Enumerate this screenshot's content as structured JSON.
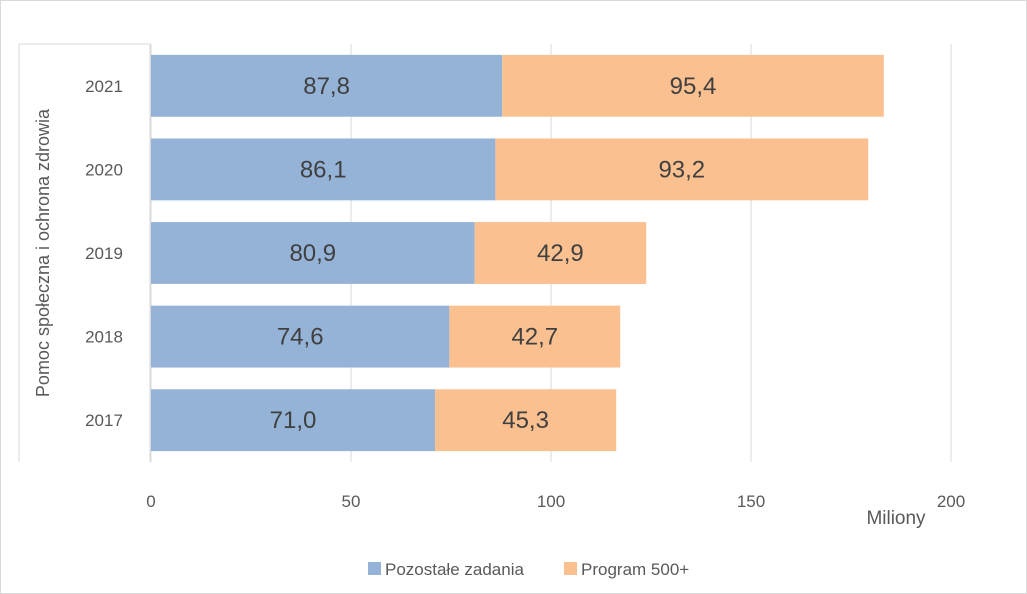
{
  "chart_data": {
    "type": "bar",
    "orientation": "horizontal",
    "stacked": true,
    "categories": [
      "2017",
      "2018",
      "2019",
      "2020",
      "2021"
    ],
    "category_group_label": "Pomoc społeczna i ochrona zdrowia",
    "series": [
      {
        "name": "Pozostałe zadania",
        "values": [
          71.0,
          74.6,
          80.9,
          86.1,
          87.8
        ],
        "labels": [
          "71,0",
          "74,6",
          "80,9",
          "86,1",
          "87,8"
        ],
        "color": "#95b3d7"
      },
      {
        "name": "Program 500+",
        "values": [
          45.3,
          42.7,
          42.9,
          93.2,
          95.4
        ],
        "labels": [
          "45,3",
          "42,7",
          "42,9",
          "93,2",
          "95,4"
        ],
        "color": "#fac090"
      }
    ],
    "x_ticks": [
      "0",
      "50",
      "100",
      "150",
      "200"
    ],
    "xlim": [
      0,
      200
    ],
    "x_unit_label": "Miliony",
    "grid": true,
    "legend_position": "bottom"
  }
}
